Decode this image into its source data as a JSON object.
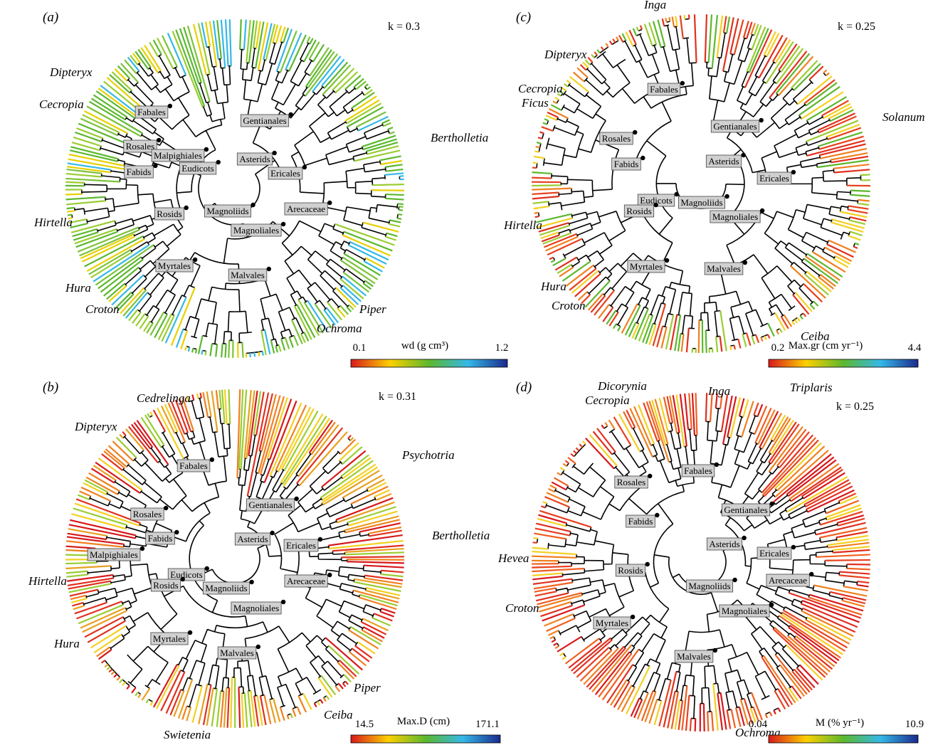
{
  "panels": {
    "a": {
      "label": "(a)",
      "k": "k = 0.3",
      "clades": [
        "Fabales",
        "Gentianales",
        "Rosales",
        "Malpighiales",
        "Asterids",
        "Fabids",
        "Eudicots",
        "Ericales",
        "Rosids",
        "Magnoliids",
        "Arecaceae",
        "Magnoliales",
        "Myrtales",
        "Malvales"
      ],
      "genera": [
        "Dipteryx",
        "Cecropia",
        "Bertholletia",
        "Hirtella",
        "Hura",
        "Croton",
        "Piper",
        "Ochroma"
      ],
      "scale": {
        "title": "wd (g cm³)",
        "min": "0.1",
        "max": "1.2"
      }
    },
    "b": {
      "label": "(b)",
      "k": "k = 0.31",
      "clades": [
        "Fabales",
        "Gentianales",
        "Rosales",
        "Fabids",
        "Asterids",
        "Ericales",
        "Malpighiales",
        "Eudicots",
        "Rosids",
        "Magnoliids",
        "Arecaceae",
        "Magnoliales",
        "Myrtales",
        "Malvales"
      ],
      "genera": [
        "Cedrelinga",
        "Dipteryx",
        "Psychotria",
        "Bertholletia",
        "Hirtella",
        "Hura",
        "Piper",
        "Ceiba",
        "Swietenia"
      ],
      "scale": {
        "title": "Max.D (cm)",
        "min": "14.5",
        "max": "171.1"
      }
    },
    "c": {
      "label": "(c)",
      "k": "k = 0.25",
      "clades": [
        "Fabales",
        "Rosales",
        "Gentianales",
        "Fabids",
        "Asterids",
        "Ericales",
        "Eudicots",
        "Magnoliids",
        "Rosids",
        "Magnoliales",
        "Myrtales",
        "Malvales"
      ],
      "genera": [
        "Inga",
        "Dipteryx",
        "Cecropia",
        "Ficus",
        "Solanum",
        "Hirtella",
        "Hura",
        "Croton",
        "Ceiba"
      ],
      "scale": {
        "title": "Max.gr (cm yr⁻¹)",
        "min": "0.2",
        "max": "4.4"
      }
    },
    "d": {
      "label": "(d)",
      "k": "k = 0.25",
      "clades": [
        "Fabales",
        "Rosales",
        "Gentianales",
        "Fabids",
        "Asterids",
        "Ericales",
        "Rosids",
        "Arecaceae",
        "Magnoliids",
        "Magnoliales",
        "Myrtales",
        "Malvales"
      ],
      "genera": [
        "Inga",
        "Dicorynia",
        "Cecropia",
        "Triplaris",
        "Hevea",
        "Croton",
        "Ochroma"
      ],
      "scale": {
        "title": "M (% yr⁻¹)",
        "min": "0.04",
        "max": "10.9"
      }
    }
  }
}
